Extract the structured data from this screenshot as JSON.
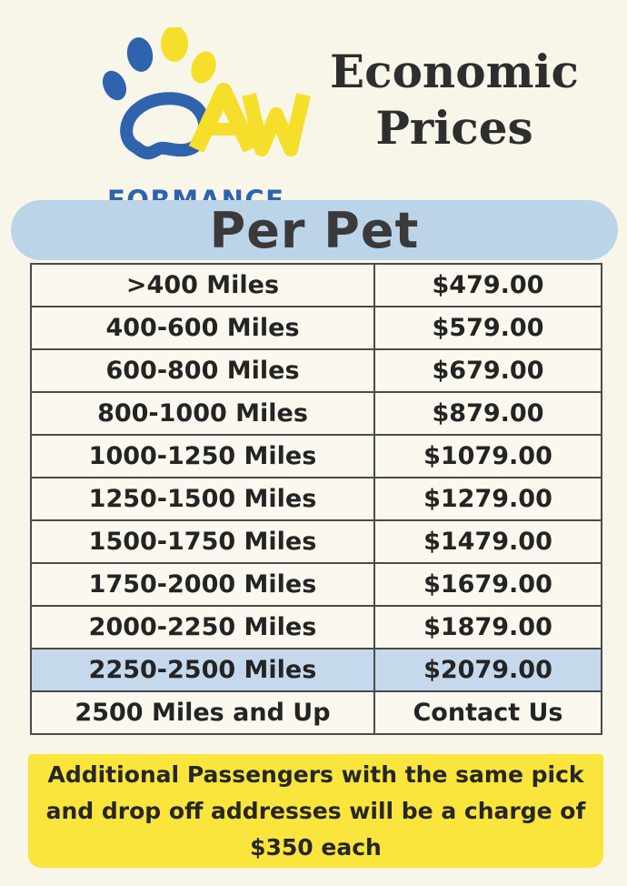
{
  "logo": {
    "text": "FORMANCE",
    "icon": "paw-logo-icon",
    "colors": {
      "blue": "#2f63ad",
      "yellow": "#f5df2a"
    }
  },
  "title": {
    "line1": "Economic",
    "line2": "Prices"
  },
  "banner": {
    "label": "Per Pet",
    "color": "#bcd4e8"
  },
  "pricing_table": {
    "rows": [
      {
        "miles": ">400 Miles",
        "price": "$479.00"
      },
      {
        "miles": "400-600 Miles",
        "price": "$579.00"
      },
      {
        "miles": "600-800 Miles",
        "price": "$679.00"
      },
      {
        "miles": "800-1000 Miles",
        "price": "$879.00"
      },
      {
        "miles": "1000-1250 Miles",
        "price": "$1079.00"
      },
      {
        "miles": "1250-1500 Miles",
        "price": "$1279.00"
      },
      {
        "miles": "1500-1750 Miles",
        "price": "$1479.00"
      },
      {
        "miles": "1750-2000 Miles",
        "price": "$1679.00"
      },
      {
        "miles": "2000-2250 Miles",
        "price": "$1879.00"
      },
      {
        "miles": "2250-2500 Miles",
        "price": "$2079.00"
      },
      {
        "miles": "2500 Miles and Up",
        "price": "Contact Us"
      }
    ],
    "highlight_color": "#c6d9ec"
  },
  "note": {
    "text": "Additional Passengers with the same pick and drop off addresses will be a charge of $350 each",
    "color": "#f9e53c"
  }
}
